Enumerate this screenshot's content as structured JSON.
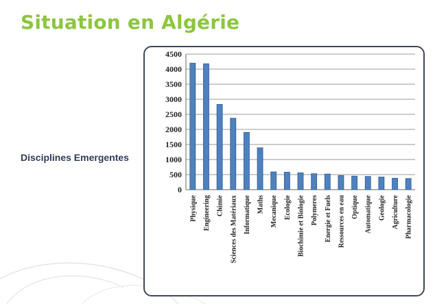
{
  "slide": {
    "title": "Situation en Algérie",
    "subtitle": "Disciplines Emergentes"
  },
  "colors": {
    "title": "#8cc63f",
    "bar": "#4f81bd",
    "bar_edge": "#2c5a93",
    "grid": "#9a9a9a"
  },
  "chart_data": {
    "type": "bar",
    "title": "",
    "xlabel": "",
    "ylabel": "",
    "ylim": [
      0,
      4500
    ],
    "yticks": [
      0,
      500,
      1000,
      1500,
      2000,
      2500,
      3000,
      3500,
      4000,
      4500
    ],
    "grid": true,
    "legend": "none",
    "categories": [
      "Physique",
      "Engineering",
      "Chimie",
      "Sciences des Matériaux",
      "Informatique",
      "Maths",
      "Mecanique",
      "Ecologie",
      "Biochimie et Biologie",
      "Polymeres",
      "Energie et Fuels",
      "Ressources en eau",
      "Optique",
      "Automatique",
      "Geologie",
      "Agriculture",
      "Pharmacologie"
    ],
    "values": [
      4200,
      4180,
      2830,
      2370,
      1900,
      1390,
      590,
      580,
      560,
      530,
      520,
      470,
      450,
      440,
      420,
      380,
      370
    ]
  }
}
